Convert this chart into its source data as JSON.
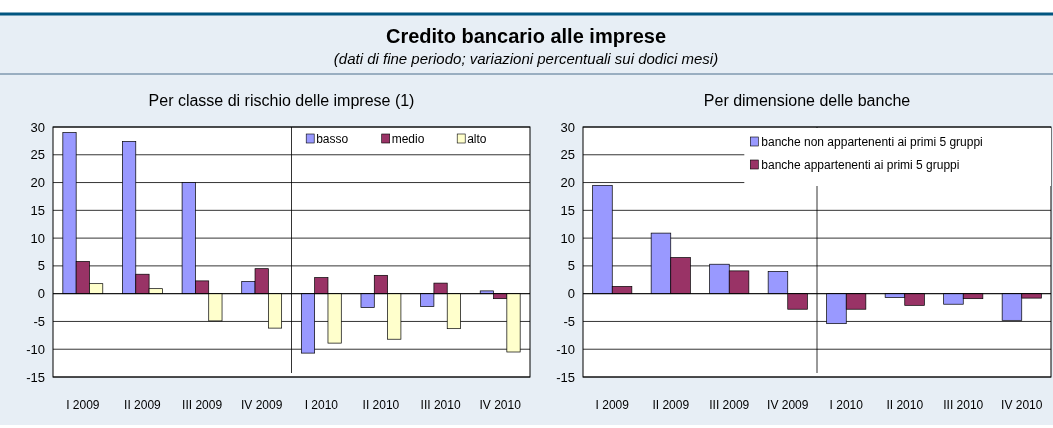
{
  "chart_data": [
    {
      "type": "other",
      "title": "Credito bancario alle imprese",
      "subtitle": "(dati di fine periodo; variazioni percentuali sui dodici mesi)"
    },
    {
      "type": "bar",
      "title": "Per classe di rischio delle imprese (1)",
      "categories": [
        "I 2009",
        "II 2009",
        "III 2009",
        "IV 2009",
        "I 2010",
        "II 2010",
        "III 2010",
        "IV 2010"
      ],
      "series": [
        {
          "name": "basso",
          "color": "#9999ff",
          "values": [
            29.0,
            27.4,
            20.0,
            2.2,
            -10.7,
            -2.5,
            -2.3,
            0.5
          ]
        },
        {
          "name": "medio",
          "color": "#993366",
          "values": [
            5.8,
            3.5,
            2.3,
            4.5,
            2.9,
            3.3,
            1.9,
            -0.9
          ]
        },
        {
          "name": "alto",
          "color": "#ffffcc",
          "values": [
            1.8,
            0.9,
            -4.9,
            -6.2,
            -8.9,
            -8.2,
            -6.3,
            -10.5
          ]
        }
      ],
      "ylim": [
        -15,
        30
      ],
      "yticks": [
        -15,
        -10,
        -5,
        0,
        5,
        10,
        15,
        20,
        25,
        30
      ],
      "grid": "y",
      "legend": "top right"
    },
    {
      "type": "bar",
      "title": "Per dimensione delle banche",
      "categories": [
        "I 2009",
        "II 2009",
        "III 2009",
        "IV 2009",
        "I 2010",
        "II 2010",
        "III 2010",
        "IV 2010"
      ],
      "series": [
        {
          "name": "banche non appartenenti ai primi 5 gruppi",
          "color": "#9999ff",
          "values": [
            19.5,
            10.9,
            5.3,
            4.0,
            -5.4,
            -0.7,
            -1.9,
            -4.8
          ]
        },
        {
          "name": "banche appartenenti ai primi 5 gruppi",
          "color": "#993366",
          "values": [
            1.3,
            6.5,
            4.1,
            -2.8,
            -2.8,
            -2.1,
            -0.9,
            -0.8
          ]
        }
      ],
      "ylim": [
        -15,
        30
      ],
      "yticks": [
        -15,
        -10,
        -5,
        0,
        5,
        10,
        15,
        20,
        25,
        30
      ],
      "grid": "y",
      "legend": "top right"
    }
  ]
}
